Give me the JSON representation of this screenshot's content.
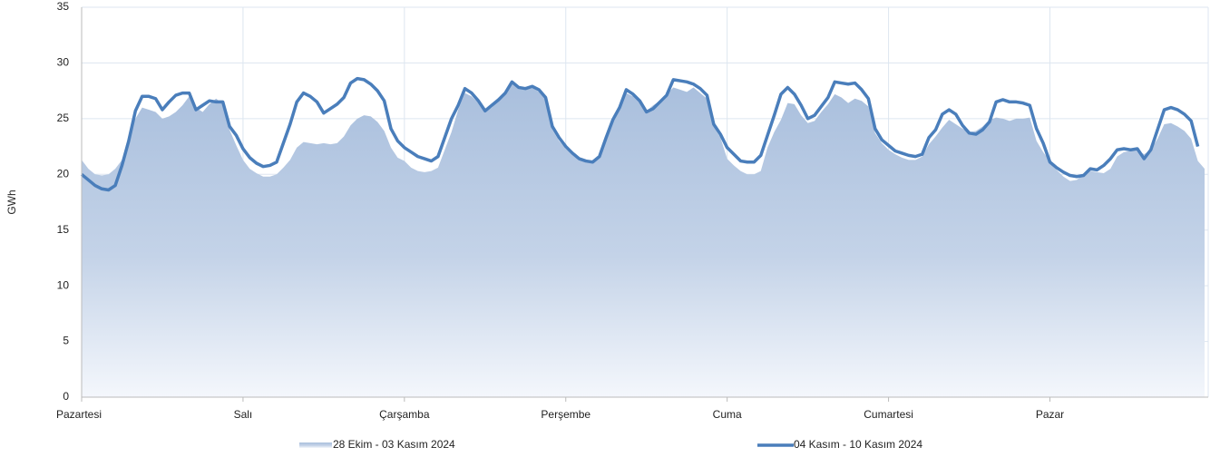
{
  "chart_data": {
    "type": "area_line",
    "y_label": "GWh",
    "xlim": [
      0,
      167
    ],
    "xticks": [
      {
        "value": 0,
        "label": "Pazartesi"
      },
      {
        "value": 24,
        "label": "Salı"
      },
      {
        "value": 48,
        "label": "Çarşamba"
      },
      {
        "value": 72,
        "label": "Perşembe"
      },
      {
        "value": 96,
        "label": "Cuma"
      },
      {
        "value": 120,
        "label": "Cumartesi"
      },
      {
        "value": 144,
        "label": "Pazar"
      }
    ],
    "ylim": [
      0,
      35
    ],
    "yticks": [
      0,
      5,
      10,
      15,
      20,
      25,
      30,
      35
    ],
    "grid": true,
    "legend": "bottom",
    "series": [
      {
        "name": "28 Ekim - 03 Kasım 2024",
        "kind": "area",
        "color": "#aec2de",
        "values": [
          21.3,
          20.5,
          20.0,
          19.9,
          20.0,
          20.5,
          21.3,
          23.5,
          25.0,
          26.0,
          25.8,
          25.6,
          25.0,
          25.2,
          25.6,
          26.2,
          27.0,
          26.0,
          25.6,
          26.3,
          26.8,
          26.3,
          24.0,
          22.6,
          21.3,
          20.5,
          20.1,
          19.8,
          19.8,
          20.0,
          20.6,
          21.3,
          22.4,
          22.9,
          22.8,
          22.7,
          22.8,
          22.7,
          22.8,
          23.4,
          24.4,
          25.0,
          25.3,
          25.2,
          24.7,
          23.9,
          22.4,
          21.5,
          21.2,
          20.6,
          20.3,
          20.2,
          20.3,
          20.6,
          22.2,
          23.8,
          25.8,
          27.3,
          27.0,
          26.4,
          25.6,
          26.0,
          26.6,
          27.2,
          28.1,
          27.9,
          27.6,
          27.8,
          27.4,
          26.8,
          24.0,
          23.0,
          22.3,
          21.8,
          21.4,
          21.2,
          21.1,
          21.6,
          23.2,
          24.8,
          26.0,
          27.3,
          27.0,
          26.4,
          25.7,
          26.2,
          26.6,
          27.2,
          27.8,
          27.6,
          27.4,
          27.8,
          27.3,
          26.8,
          24.3,
          23.3,
          21.4,
          20.8,
          20.3,
          20.0,
          20.0,
          20.3,
          22.4,
          23.8,
          24.9,
          26.4,
          26.3,
          25.3,
          24.6,
          24.8,
          25.6,
          26.3,
          27.2,
          26.9,
          26.4,
          26.8,
          26.6,
          26.1,
          23.7,
          22.8,
          22.2,
          21.8,
          21.5,
          21.3,
          21.3,
          21.6,
          22.7,
          23.4,
          24.2,
          24.9,
          24.5,
          24.1,
          23.8,
          23.9,
          24.3,
          24.9,
          25.1,
          25.0,
          24.8,
          25.0,
          25.0,
          25.1,
          23.0,
          22.0,
          21.2,
          20.4,
          19.8,
          19.4,
          19.5,
          20.0,
          20.3,
          20.2,
          20.1,
          20.5,
          21.6,
          22.0,
          22.1,
          22.2,
          21.8,
          22.2,
          23.2,
          24.5,
          24.6,
          24.3,
          23.9,
          23.2,
          21.2,
          20.5
        ]
      },
      {
        "name": "04 Kasım - 10 Kasım 2024",
        "kind": "line",
        "color": "#4a7ebb",
        "values": [
          20.0,
          19.5,
          19.0,
          18.7,
          18.6,
          19.0,
          20.8,
          23.0,
          25.7,
          27.0,
          27.0,
          26.8,
          25.8,
          26.5,
          27.1,
          27.3,
          27.3,
          25.8,
          26.2,
          26.6,
          26.5,
          26.5,
          24.3,
          23.5,
          22.3,
          21.5,
          21.0,
          20.7,
          20.8,
          21.1,
          22.8,
          24.5,
          26.5,
          27.3,
          27.0,
          26.5,
          25.5,
          25.9,
          26.3,
          26.9,
          28.2,
          28.6,
          28.5,
          28.1,
          27.5,
          26.6,
          24.1,
          23.0,
          22.4,
          22.0,
          21.6,
          21.4,
          21.2,
          21.6,
          23.3,
          25.0,
          26.2,
          27.7,
          27.3,
          26.6,
          25.7,
          26.2,
          26.7,
          27.3,
          28.3,
          27.8,
          27.7,
          27.9,
          27.6,
          26.9,
          24.3,
          23.3,
          22.5,
          21.9,
          21.4,
          21.2,
          21.1,
          21.6,
          23.3,
          24.9,
          26.0,
          27.6,
          27.2,
          26.6,
          25.6,
          25.9,
          26.5,
          27.1,
          28.5,
          28.4,
          28.3,
          28.1,
          27.7,
          27.1,
          24.5,
          23.6,
          22.4,
          21.8,
          21.2,
          21.1,
          21.1,
          21.7,
          23.5,
          25.3,
          27.2,
          27.8,
          27.2,
          26.2,
          25.0,
          25.3,
          26.1,
          26.9,
          28.3,
          28.2,
          28.1,
          28.2,
          27.6,
          26.8,
          24.1,
          23.1,
          22.6,
          22.1,
          21.9,
          21.7,
          21.6,
          21.8,
          23.3,
          24.0,
          25.4,
          25.8,
          25.4,
          24.4,
          23.7,
          23.6,
          24.0,
          24.7,
          26.5,
          26.7,
          26.5,
          26.5,
          26.4,
          26.2,
          24.1,
          22.8,
          21.1,
          20.6,
          20.2,
          19.9,
          19.8,
          19.9,
          20.5,
          20.4,
          20.8,
          21.4,
          22.2,
          22.3,
          22.2,
          22.3,
          21.4,
          22.2,
          24.0,
          25.8,
          26.0,
          25.8,
          25.4,
          24.8,
          22.5,
          null
        ]
      }
    ]
  }
}
